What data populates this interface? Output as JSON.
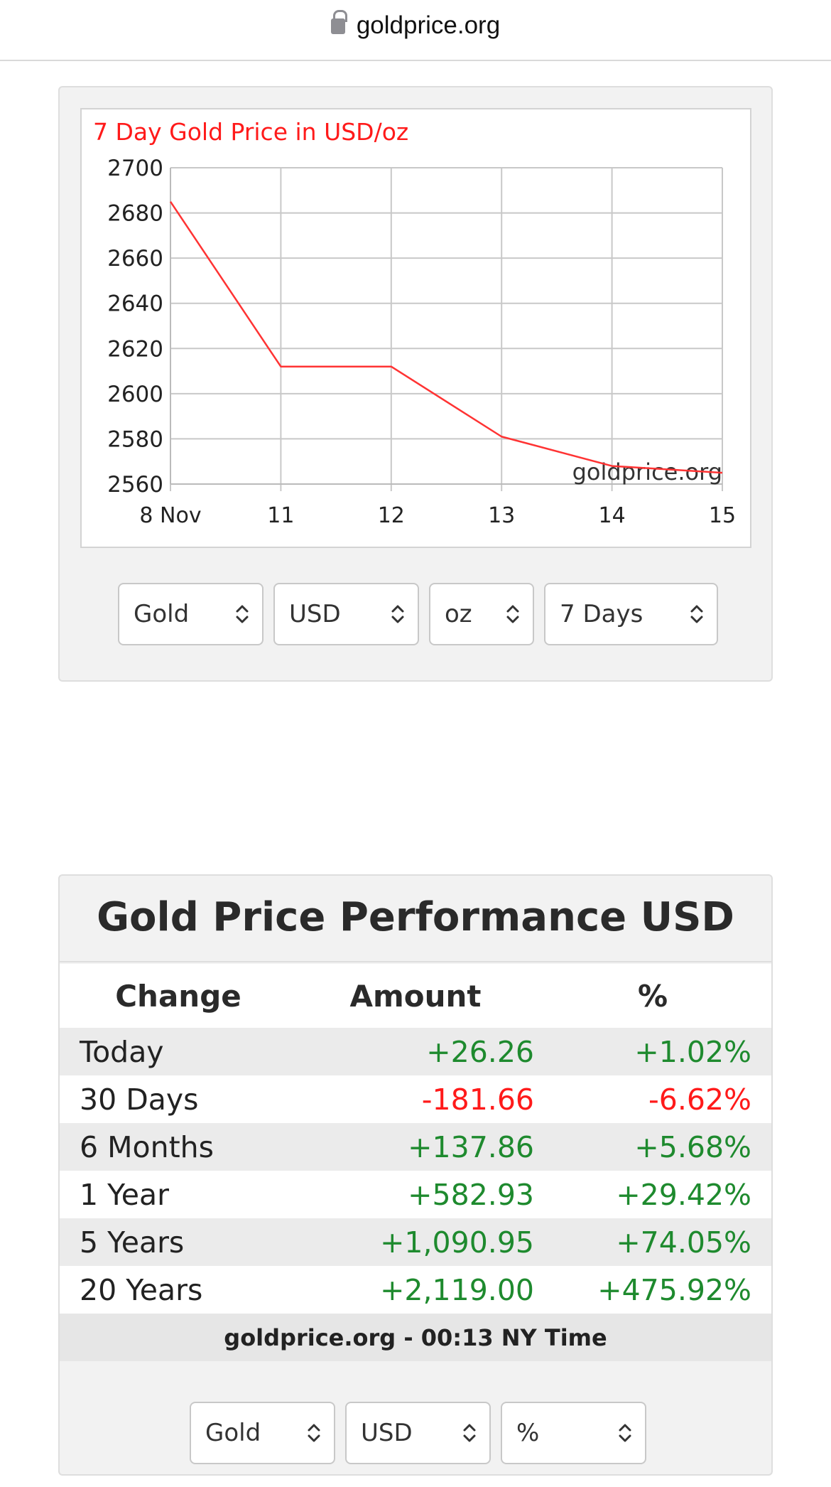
{
  "browser": {
    "url": "goldprice.org"
  },
  "chart_data": {
    "type": "line",
    "title": "7 Day Gold Price in USD/oz",
    "watermark": "goldprice.org",
    "categories": [
      "8 Nov",
      "11",
      "12",
      "13",
      "14",
      "15"
    ],
    "values": [
      2685,
      2612,
      2612,
      2581,
      2568,
      2565
    ],
    "ylim": [
      2560,
      2700
    ],
    "yticks": [
      "2700",
      "2680",
      "2660",
      "2640",
      "2620",
      "2600",
      "2580",
      "2560"
    ],
    "grid": true,
    "line_color": "#ff3333",
    "title_color": "#ff1a1a"
  },
  "chart_controls": {
    "metal": "Gold",
    "currency": "USD",
    "unit": "oz",
    "range": "7 Days"
  },
  "performance": {
    "title": "Gold Price Performance USD",
    "headers": {
      "change": "Change",
      "amount": "Amount",
      "percent": "%"
    },
    "rows": [
      {
        "label": "Today",
        "amount": "+26.26",
        "percent": "+1.02%"
      },
      {
        "label": "30 Days",
        "amount": "-181.66",
        "percent": "-6.62%"
      },
      {
        "label": "6 Months",
        "amount": "+137.86",
        "percent": "+5.68%"
      },
      {
        "label": "1 Year",
        "amount": "+582.93",
        "percent": "+29.42%"
      },
      {
        "label": "5 Years",
        "amount": "+1,090.95",
        "percent": "+74.05%"
      },
      {
        "label": "20 Years",
        "amount": "+2,119.00",
        "percent": "+475.92%"
      }
    ],
    "footer": "goldprice.org - 00:13 NY Time",
    "colors": {
      "positive": "#1e8a2e",
      "negative": "#ff1a1a"
    }
  },
  "perf_controls": {
    "metal": "Gold",
    "currency": "USD",
    "mode": "%"
  }
}
